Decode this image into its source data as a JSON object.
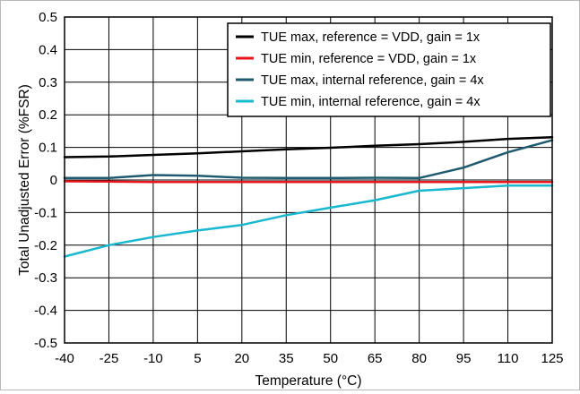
{
  "chart_data": {
    "type": "line",
    "x": [
      -40,
      -25,
      -10,
      5,
      20,
      35,
      50,
      65,
      80,
      95,
      110,
      125
    ],
    "xticks": [
      "-40",
      "-25",
      "-10",
      "5",
      "20",
      "35",
      "50",
      "65",
      "80",
      "95",
      "110",
      "125"
    ],
    "yticks": [
      "0.5",
      "0.4",
      "0.3",
      "0.2",
      "0.1",
      "0",
      "-0.1",
      "-0.2",
      "-0.3",
      "-0.4",
      "-0.5"
    ],
    "ytick_values": [
      0.5,
      0.4,
      0.3,
      0.2,
      0.1,
      0,
      -0.1,
      -0.2,
      -0.3,
      -0.4,
      -0.5
    ],
    "xlim": [
      -40,
      125
    ],
    "ylim": [
      -0.5,
      0.5
    ],
    "xlabel": "Temperature (°C)",
    "ylabel": "Total Unadjusted Error (%FSR)",
    "grid": true,
    "legend_position": "top-right",
    "series": [
      {
        "name": "TUE max, reference = VDD, gain = 1x",
        "color": "#000000",
        "values": [
          0.07,
          0.072,
          0.077,
          0.082,
          0.088,
          0.094,
          0.099,
          0.105,
          0.11,
          0.117,
          0.126,
          0.131
        ]
      },
      {
        "name": "TUE min, reference = VDD, gain = 1x",
        "color": "#e8161c",
        "values": [
          -0.004,
          -0.005,
          -0.006,
          -0.006,
          -0.006,
          -0.006,
          -0.006,
          -0.006,
          -0.006,
          -0.006,
          -0.006,
          -0.006
        ]
      },
      {
        "name": "TUE max, internal reference, gain = 4x",
        "color": "#1f5a6e",
        "values": [
          0.006,
          0.006,
          0.015,
          0.013,
          0.007,
          0.006,
          0.006,
          0.007,
          0.006,
          0.038,
          0.085,
          0.122
        ]
      },
      {
        "name": "TUE min, internal reference, gain = 4x",
        "color": "#1ab8cf",
        "values": [
          -0.235,
          -0.2,
          -0.175,
          -0.155,
          -0.138,
          -0.108,
          -0.085,
          -0.062,
          -0.033,
          -0.025,
          -0.017,
          -0.017
        ]
      }
    ]
  }
}
